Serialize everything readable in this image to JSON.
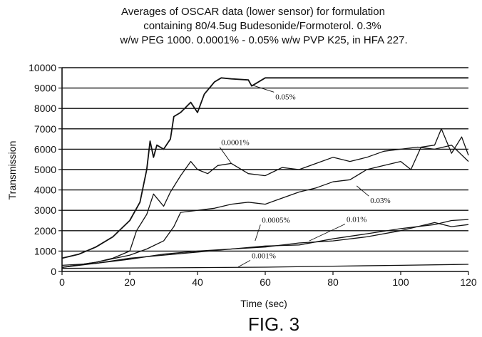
{
  "chart_data": {
    "type": "line",
    "title": [
      "Averages of OSCAR data (lower sensor) for  formulation",
      "containing 80/4.5ug Budesonide/Formoterol.  0.3%",
      "w/w PEG 1000.  0.0001% - 0.05% w/w PVP K25, in HFA 227."
    ],
    "xlabel": "Time (sec)",
    "ylabel": "Transmission",
    "xlim": [
      0,
      120
    ],
    "ylim": [
      0,
      10000
    ],
    "xticks": [
      0,
      20,
      40,
      60,
      80,
      100,
      120
    ],
    "yticks": [
      0,
      1000,
      2000,
      3000,
      4000,
      5000,
      6000,
      7000,
      8000,
      9000,
      10000
    ],
    "grid": "horizontal",
    "series": [
      {
        "name": "0.05%",
        "x": [
          0,
          5,
          10,
          15,
          20,
          23,
          25,
          26,
          27,
          28,
          30,
          32,
          33,
          35,
          38,
          40,
          42,
          45,
          47,
          50,
          55,
          56,
          60,
          70,
          80,
          100,
          120
        ],
        "y": [
          650,
          850,
          1200,
          1700,
          2500,
          3400,
          5000,
          6400,
          5600,
          6200,
          6000,
          6500,
          7600,
          7800,
          8300,
          7800,
          8700,
          9300,
          9500,
          9450,
          9400,
          9100,
          9500,
          9500,
          9500,
          9500,
          9500
        ]
      },
      {
        "name": "0.0001%",
        "x": [
          0,
          10,
          15,
          20,
          22,
          25,
          27,
          30,
          32,
          35,
          38,
          40,
          43,
          46,
          50,
          55,
          60,
          65,
          70,
          75,
          80,
          85,
          90,
          95,
          100,
          105,
          110,
          115,
          120
        ],
        "y": [
          200,
          450,
          650,
          1000,
          2000,
          2800,
          3800,
          3200,
          3900,
          4700,
          5400,
          5000,
          4800,
          5200,
          5300,
          4800,
          4700,
          5100,
          5000,
          5300,
          5600,
          5400,
          5600,
          5900,
          6000,
          6100,
          6000,
          6200,
          5400
        ]
      },
      {
        "name": "0.03%",
        "x": [
          0,
          10,
          20,
          25,
          30,
          33,
          35,
          40,
          45,
          50,
          55,
          60,
          65,
          70,
          75,
          80,
          85,
          90,
          95,
          100,
          103,
          106,
          110,
          112,
          115,
          118,
          120
        ],
        "y": [
          200,
          450,
          800,
          1100,
          1500,
          2200,
          2900,
          3000,
          3100,
          3300,
          3400,
          3300,
          3600,
          3900,
          4100,
          4400,
          4500,
          5000,
          5200,
          5400,
          5000,
          6100,
          6200,
          7000,
          5800,
          6600,
          5700
        ]
      },
      {
        "name": "0.0005%",
        "x": [
          0,
          10,
          20,
          30,
          40,
          50,
          60,
          70,
          80,
          90,
          100,
          110,
          115,
          120
        ],
        "y": [
          300,
          400,
          600,
          850,
          1000,
          1100,
          1200,
          1400,
          1500,
          1700,
          2000,
          2400,
          2200,
          2300
        ]
      },
      {
        "name": "0.01%",
        "x": [
          0,
          10,
          20,
          30,
          40,
          50,
          60,
          70,
          80,
          90,
          100,
          110,
          115,
          120
        ],
        "y": [
          200,
          400,
          650,
          800,
          950,
          1100,
          1250,
          1300,
          1600,
          1850,
          2100,
          2300,
          2500,
          2550
        ]
      },
      {
        "name": "0.001%",
        "x": [
          0,
          20,
          40,
          60,
          80,
          100,
          120
        ],
        "y": [
          150,
          170,
          190,
          210,
          260,
          300,
          350
        ]
      }
    ],
    "annotations": [
      {
        "text": "0.05%",
        "x": 63,
        "y": 8450,
        "arrow_to": [
          56,
          9150
        ]
      },
      {
        "text": "0.0001%",
        "x": 47,
        "y": 6200,
        "arrow_to": [
          50,
          5300
        ]
      },
      {
        "text": "0.03%",
        "x": 91,
        "y": 3350,
        "arrow_to": [
          87,
          4200
        ]
      },
      {
        "text": "0.0005%",
        "x": 59,
        "y": 2400,
        "arrow_to": [
          57,
          1500
        ]
      },
      {
        "text": "0.01%",
        "x": 84,
        "y": 2430,
        "arrow_to": [
          73,
          1500
        ]
      },
      {
        "text": "0.001%",
        "x": 56,
        "y": 650,
        "arrow_to": [
          52,
          220
        ]
      }
    ]
  },
  "caption": "FIG. 3"
}
